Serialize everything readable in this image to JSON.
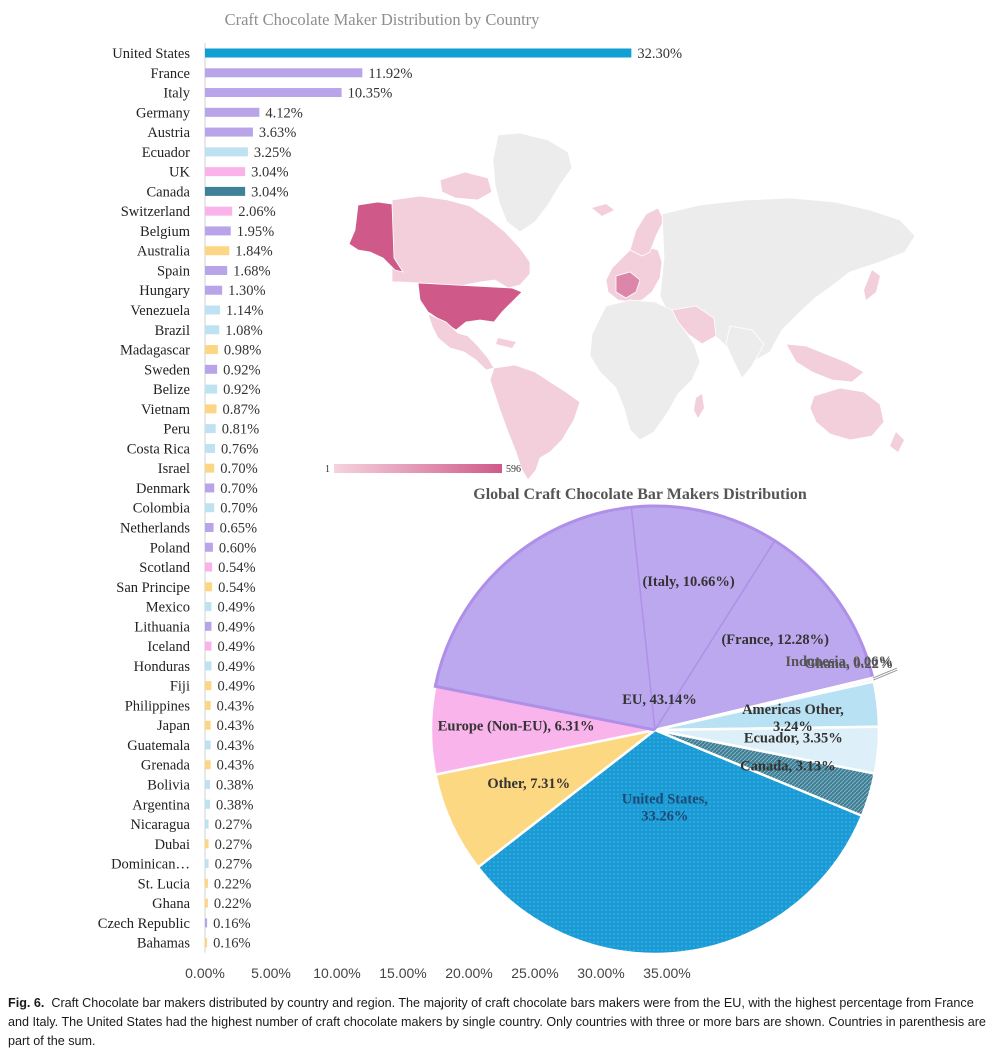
{
  "figure": {
    "caption_label": "Fig. 6.",
    "caption_text": "Craft Chocolate bar makers distributed by country and region. The majority of craft chocolate bars makers were from the EU, with the highest percentage from France and Italy. The United States had the highest number of craft chocolate makers by single country. Only countries with three or more bars are shown. Countries in parenthesis are part of the sum."
  },
  "map": {
    "legend_min": "1",
    "legend_max": "596",
    "scale_colors": [
      "#f6d3de",
      "#cf5a8a"
    ],
    "neutral_color": "#ececec"
  },
  "chart_data": [
    {
      "type": "bar",
      "orientation": "horizontal",
      "title": "Craft Chocolate Maker Distribution by Country",
      "xlim": [
        0,
        35
      ],
      "xticks": [
        "0.00%",
        "5.00%",
        "10.00%",
        "15.00%",
        "20.00%",
        "25.00%",
        "30.00%",
        "35.00%"
      ],
      "categories": [
        "United States",
        "France",
        "Italy",
        "Germany",
        "Austria",
        "Ecuador",
        "UK",
        "Canada",
        "Switzerland",
        "Belgium",
        "Australia",
        "Spain",
        "Hungary",
        "Venezuela",
        "Brazil",
        "Madagascar",
        "Sweden",
        "Belize",
        "Vietnam",
        "Peru",
        "Costa Rica",
        "Israel",
        "Denmark",
        "Colombia",
        "Netherlands",
        "Poland",
        "Scotland",
        "San Principe",
        "Mexico",
        "Lithuania",
        "Iceland",
        "Honduras",
        "Fiji",
        "Philippines",
        "Japan",
        "Guatemala",
        "Grenada",
        "Bolivia",
        "Argentina",
        "Nicaragua",
        "Dubai",
        "Dominican…",
        "St. Lucia",
        "Ghana",
        "Czech Republic",
        "Bahamas"
      ],
      "values": [
        32.3,
        11.92,
        10.35,
        4.12,
        3.63,
        3.25,
        3.04,
        3.04,
        2.06,
        1.95,
        1.84,
        1.68,
        1.3,
        1.14,
        1.08,
        0.98,
        0.92,
        0.92,
        0.87,
        0.81,
        0.76,
        0.7,
        0.7,
        0.7,
        0.65,
        0.6,
        0.54,
        0.54,
        0.49,
        0.49,
        0.49,
        0.49,
        0.49,
        0.43,
        0.43,
        0.43,
        0.43,
        0.38,
        0.38,
        0.27,
        0.27,
        0.27,
        0.22,
        0.22,
        0.16,
        0.16
      ],
      "labels": [
        "32.30%",
        "11.92%",
        "10.35%",
        "4.12%",
        "3.63%",
        "3.25%",
        "3.04%",
        "3.04%",
        "2.06%",
        "1.95%",
        "1.84%",
        "1.68%",
        "1.30%",
        "1.14%",
        "1.08%",
        "0.98%",
        "0.92%",
        "0.92%",
        "0.87%",
        "0.81%",
        "0.76%",
        "0.70%",
        "0.70%",
        "0.70%",
        "0.65%",
        "0.60%",
        "0.54%",
        "0.54%",
        "0.49%",
        "0.49%",
        "0.49%",
        "0.49%",
        "0.49%",
        "0.43%",
        "0.43%",
        "0.43%",
        "0.43%",
        "0.38%",
        "0.38%",
        "0.27%",
        "0.27%",
        "0.27%",
        "0.22%",
        "0.22%",
        "0.16%",
        "0.16%"
      ],
      "bar_colors": [
        "#0f9fd3",
        "#b9a4ea",
        "#b9a4ea",
        "#b9a4ea",
        "#b9a4ea",
        "#bfe2f2",
        "#f9b3ea",
        "#3f8199",
        "#f9b3ea",
        "#b9a4ea",
        "#fdd685",
        "#b9a4ea",
        "#b9a4ea",
        "#bfe2f2",
        "#bfe2f2",
        "#fdd685",
        "#b9a4ea",
        "#bfe2f2",
        "#fdd685",
        "#bfe2f2",
        "#bfe2f2",
        "#fdd685",
        "#b9a4ea",
        "#bfe2f2",
        "#b9a4ea",
        "#b9a4ea",
        "#f9b3ea",
        "#fdd685",
        "#bfe2f2",
        "#b9a4ea",
        "#f9b3ea",
        "#bfe2f2",
        "#fdd685",
        "#fdd685",
        "#fdd685",
        "#bfe2f2",
        "#fdd685",
        "#bfe2f2",
        "#bfe2f2",
        "#bfe2f2",
        "#fdd685",
        "#bfe2f2",
        "#fdd685",
        "#fdd685",
        "#b9a4ea",
        "#fdd685"
      ]
    },
    {
      "type": "pie",
      "title": "Global Craft Chocolate Bar Makers Distribution",
      "slices": [
        {
          "label": "United States,",
          "label2": "33.26%",
          "value": 33.26,
          "color": "#1a9bd6",
          "pattern": "dots"
        },
        {
          "label": "Other, 7.31%",
          "value": 7.31,
          "color": "#fdd882"
        },
        {
          "label": "Europe (Non-EU), 6.31%",
          "value": 6.31,
          "color": "#fab4ec"
        },
        {
          "label": "EU, 43.14%",
          "value": 43.14,
          "color": "#bca8ee"
        },
        {
          "label": "Indonesia, 0.06%",
          "value": 0.06,
          "color": "#d9d0f4"
        },
        {
          "label": "Ghana, 0.22%",
          "value": 0.22,
          "color": "#e8e8e8"
        },
        {
          "label": "Americas Other,",
          "label2": "3.24%",
          "value": 3.24,
          "color": "#b8e1f3"
        },
        {
          "label": "Ecuador, 3.35%",
          "value": 3.35,
          "color": "#ddf0f9"
        },
        {
          "label": "Canada, 3.13%",
          "value": 3.13,
          "color": "#3f7f96",
          "pattern": "hatch"
        }
      ],
      "sub_slices": [
        {
          "label": "(France, 12.28%)",
          "value": 12.28
        },
        {
          "label": "(Italy, 10.66%)",
          "value": 10.66
        }
      ],
      "border_color": "#b08fe8"
    }
  ]
}
